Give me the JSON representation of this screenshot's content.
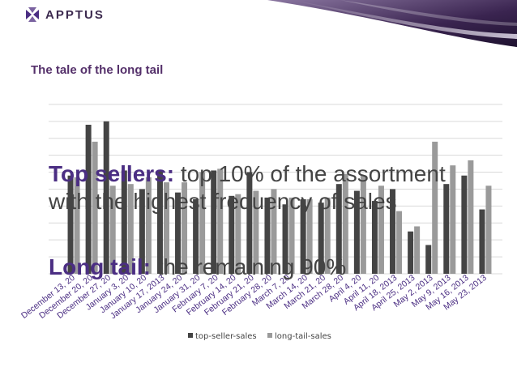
{
  "brand": {
    "logo_text": "APPTUS",
    "accent": "#4b2e83",
    "swoosh_dark": "#2a1838",
    "swoosh_light": "#8a76a0"
  },
  "slide": {
    "title": "The tale of the long tail"
  },
  "callouts": {
    "top_sellers_bold": "Top sellers:",
    "top_sellers_rest": " top 10% of the assortment",
    "top_sellers_line2": "with the highest frequency of sales",
    "long_tail_bold": "Long tail:",
    "long_tail_rest": " the remaining 90%"
  },
  "chart_data": {
    "type": "bar",
    "categories": [
      "December 13, 2012",
      "December 20, 2012",
      "December 27, 2012",
      "January 3, 2013",
      "January 10, 2013",
      "January 17, 2013",
      "January 24, 2013",
      "January 31, 2013",
      "February 7, 2013",
      "February 14, 2013",
      "February 21, 2013",
      "February 28, 2013",
      "March 7, 2013",
      "March 14, 2013",
      "March 21, 2013",
      "March 28, 2013",
      "April 4, 2013",
      "April 11, 2013",
      "April 18, 2013",
      "April 25, 2013",
      "May 2, 2013",
      "May 9, 2013",
      "May 16, 2013",
      "May 23, 2013"
    ],
    "x_tick_labels": [
      "December 13, 20",
      "December 20, 20",
      "December 27, 20",
      "January 3, 20",
      "January 10, 20",
      "January 17, 2013",
      "January 24, 20",
      "January 31, 20",
      "February 7, 20",
      "February 14, 20",
      "February 21, 20",
      "February 28, 20",
      "March 7, 20",
      "March 14, 20",
      "March 21, 20",
      "March 28, 20",
      "April 4, 20",
      "April 11, 20",
      "April 18, 2013",
      "April 25, 2013",
      "May 2, 2013",
      "May 9, 2013",
      "May 16, 2013",
      "May 23, 2013"
    ],
    "series": [
      {
        "name": "top-seller-sales",
        "color": "#444444",
        "values": [
          58,
          88,
          90,
          61,
          50,
          61,
          48,
          44,
          61,
          46,
          60,
          45,
          41,
          44,
          42,
          53,
          49,
          43,
          50,
          25,
          17,
          53,
          58,
          38
        ]
      },
      {
        "name": "long-tail-sales",
        "color": "#9a9a9a",
        "values": [
          57,
          78,
          52,
          53,
          57,
          54,
          54,
          60,
          62,
          47,
          49,
          50,
          45,
          44,
          45,
          59,
          58,
          52,
          37,
          28,
          78,
          64,
          67,
          52
        ]
      }
    ],
    "ylim": [
      0,
      110
    ],
    "gridlines": [
      0,
      10,
      20,
      30,
      40,
      50,
      60,
      70,
      80,
      90,
      100
    ],
    "grid": true,
    "legend_position": "bottom"
  }
}
